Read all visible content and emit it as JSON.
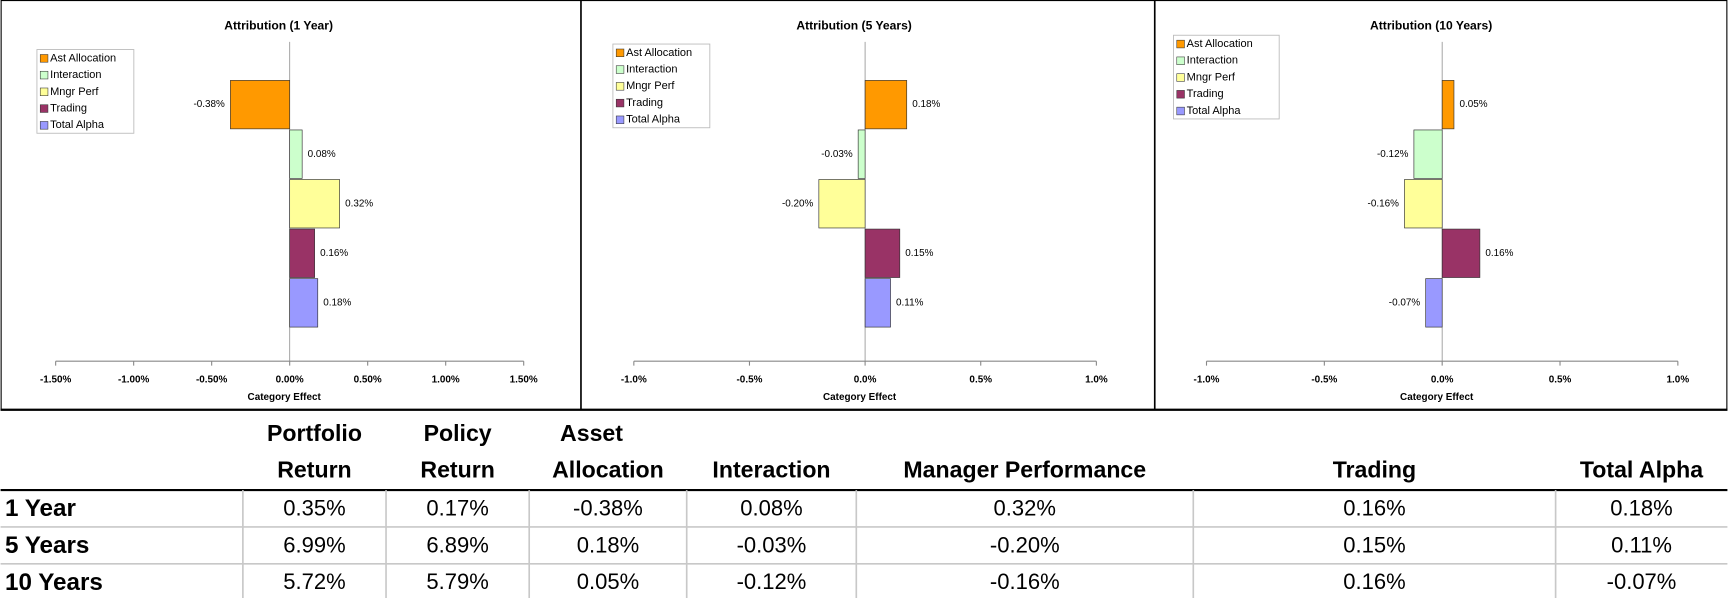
{
  "chart_data": [
    {
      "type": "bar",
      "orientation": "horizontal",
      "title": "Attribution (1 Year)",
      "x_label": "Category Effect",
      "categories": [
        "Ast Allocation",
        "Interaction",
        "Mngr Perf",
        "Trading",
        "Total Alpha"
      ],
      "values": [
        -0.38,
        0.08,
        0.32,
        0.16,
        0.18
      ],
      "value_labels": [
        "-0.38%",
        "0.08%",
        "0.32%",
        "0.16%",
        "0.18%"
      ],
      "colors": [
        "#ff9900",
        "#ccffcc",
        "#ffff99",
        "#993366",
        "#9999ff"
      ],
      "xlim": [
        -1.5,
        1.5
      ],
      "xticks": [
        {
          "value": -1.5,
          "label": "-1.50%"
        },
        {
          "value": -1.0,
          "label": "-1.00%"
        },
        {
          "value": -0.5,
          "label": "-0.50%"
        },
        {
          "value": 0,
          "label": "0.00%"
        },
        {
          "value": 0.5,
          "label": "0.50%"
        },
        {
          "value": 1.0,
          "label": "1.00%"
        },
        {
          "value": 1.5,
          "label": "1.50%"
        }
      ],
      "legend": "top-left"
    },
    {
      "type": "bar",
      "orientation": "horizontal",
      "title": "Attribution (5 Years)",
      "x_label": "Category Effect",
      "categories": [
        "Ast Allocation",
        "Interaction",
        "Mngr Perf",
        "Trading",
        "Total Alpha"
      ],
      "values": [
        0.18,
        -0.03,
        -0.2,
        0.15,
        0.11
      ],
      "value_labels": [
        "0.18%",
        "-0.03%",
        "-0.20%",
        "0.15%",
        "0.11%"
      ],
      "colors": [
        "#ff9900",
        "#ccffcc",
        "#ffff99",
        "#993366",
        "#9999ff"
      ],
      "xlim": [
        -1.0,
        1.0
      ],
      "xticks": [
        {
          "value": -1.0,
          "label": "-1.0%"
        },
        {
          "value": -0.5,
          "label": "-0.5%"
        },
        {
          "value": 0,
          "label": "0.0%"
        },
        {
          "value": 0.5,
          "label": "0.5%"
        },
        {
          "value": 1.0,
          "label": "1.0%"
        }
      ],
      "legend": "top-left"
    },
    {
      "type": "bar",
      "orientation": "horizontal",
      "title": "Attribution (10 Years)",
      "x_label": "Category Effect",
      "categories": [
        "Ast Allocation",
        "Interaction",
        "Mngr Perf",
        "Trading",
        "Total Alpha"
      ],
      "values": [
        0.05,
        -0.12,
        -0.16,
        0.16,
        -0.07
      ],
      "value_labels": [
        "0.05%",
        "-0.12%",
        "-0.16%",
        "0.16%",
        "-0.07%"
      ],
      "colors": [
        "#ff9900",
        "#ccffcc",
        "#ffff99",
        "#993366",
        "#9999ff"
      ],
      "xlim": [
        -1.0,
        1.0
      ],
      "xticks": [
        {
          "value": -1.0,
          "label": "-1.0%"
        },
        {
          "value": -0.5,
          "label": "-0.5%"
        },
        {
          "value": 0,
          "label": "0.0%"
        },
        {
          "value": 0.5,
          "label": "0.5%"
        },
        {
          "value": 1.0,
          "label": "1.0%"
        }
      ],
      "legend": "top-left"
    }
  ],
  "table": {
    "columns": [
      [
        "Portfolio",
        "Return"
      ],
      [
        "Policy",
        "Return"
      ],
      [
        "Asset",
        "Allocation"
      ],
      [
        "Interaction"
      ],
      [
        "Manager Performance"
      ],
      [
        "Trading"
      ],
      [
        "Total Alpha"
      ]
    ],
    "rows": [
      {
        "label": "1 Year",
        "cells": [
          "0.35%",
          "0.17%",
          "-0.38%",
          "0.08%",
          "0.32%",
          "0.16%",
          "0.18%"
        ]
      },
      {
        "label": "5 Years",
        "cells": [
          "6.99%",
          "6.89%",
          "0.18%",
          "-0.03%",
          "-0.20%",
          "0.15%",
          "0.11%"
        ]
      },
      {
        "label": "10 Years",
        "cells": [
          "5.72%",
          "5.79%",
          "0.05%",
          "-0.12%",
          "-0.16%",
          "0.16%",
          "-0.07%"
        ]
      }
    ]
  }
}
